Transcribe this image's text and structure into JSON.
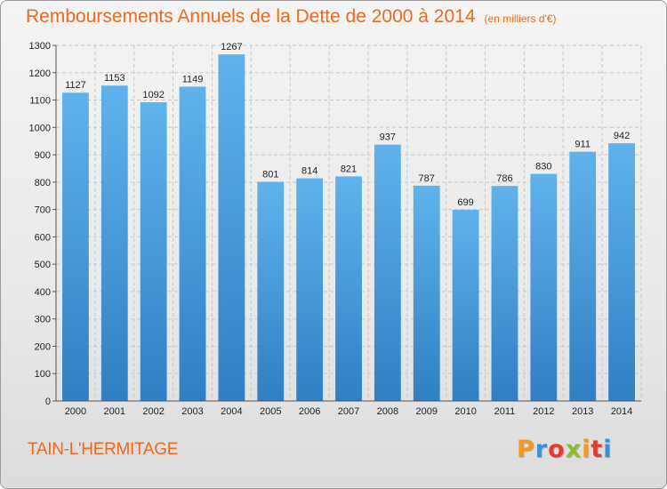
{
  "chart_data": {
    "type": "bar",
    "title": "Remboursements Annuels de la Dette de 2000 à 2014",
    "unit_note": "(en milliers d'€)",
    "categories": [
      "2000",
      "2001",
      "2002",
      "2003",
      "2004",
      "2005",
      "2006",
      "2007",
      "2008",
      "2009",
      "2010",
      "2011",
      "2012",
      "2013",
      "2014"
    ],
    "values": [
      1127,
      1153,
      1092,
      1149,
      1267,
      801,
      814,
      821,
      937,
      787,
      699,
      786,
      830,
      911,
      942
    ],
    "xlabel": "",
    "ylabel": "",
    "ylim": [
      0,
      1300
    ],
    "yticks": [
      0,
      100,
      200,
      300,
      400,
      500,
      600,
      700,
      800,
      900,
      1000,
      1100,
      1200,
      1300
    ],
    "grid": true,
    "bar_color": "#4a9fdc"
  },
  "commune": "TAIN-L'HERMITAGE",
  "brand": {
    "letters": [
      "P",
      "r",
      "o",
      "x",
      "i",
      "t",
      "i"
    ],
    "colors": [
      "#f39a1c",
      "#3b8fd6",
      "#e8392a",
      "#8bbf2a",
      "#f39a1c",
      "#e8392a",
      "#3b8fd6"
    ]
  }
}
